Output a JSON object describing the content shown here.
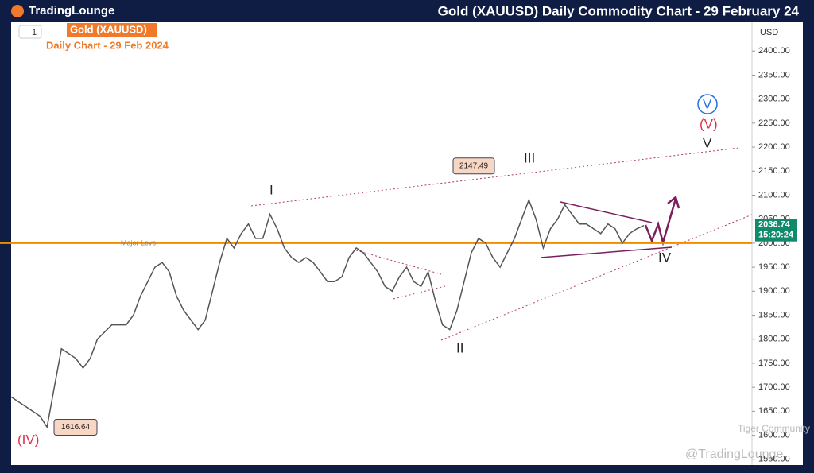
{
  "header": {
    "logo": "TradingLounge",
    "title": "Gold (XAUUSD) Daily Commodity Chart - 29 February 24"
  },
  "toolbar": {
    "interval": "1",
    "currency": "USD"
  },
  "chart_data": {
    "type": "line",
    "title": "Gold (XAUUSD)",
    "subtitle": "Daily Chart - 29 Feb 2024",
    "color": "#555555",
    "values": [
      1680,
      1670,
      1660,
      1650,
      1640,
      1617,
      1700,
      1780,
      1770,
      1760,
      1740,
      1760,
      1800,
      1815,
      1830,
      1830,
      1830,
      1850,
      1890,
      1920,
      1950,
      1960,
      1940,
      1890,
      1860,
      1840,
      1820,
      1840,
      1900,
      1960,
      2010,
      1990,
      2020,
      2040,
      2010,
      2010,
      2060,
      2030,
      1990,
      1970,
      1960,
      1970,
      1960,
      1940,
      1920,
      1920,
      1930,
      1970,
      1990,
      1980,
      1960,
      1940,
      1910,
      1900,
      1930,
      1950,
      1920,
      1910,
      1940,
      1880,
      1830,
      1820,
      1860,
      1920,
      1980,
      2010,
      2000,
      1970,
      1950,
      1980,
      2010,
      2050,
      2090,
      2050,
      1990,
      2030,
      2050,
      2080,
      2060,
      2040,
      2040,
      2030,
      2020,
      2040,
      2030,
      2000,
      2020,
      2030,
      2036.74
    ],
    "ylim": [
      1538,
      2460
    ],
    "yticks": [
      {
        "value": 1550,
        "label": "1550.00"
      },
      {
        "value": 1600,
        "label": "1600.00"
      },
      {
        "value": 1650,
        "label": "1650.00"
      },
      {
        "value": 1700,
        "label": "1700.00"
      },
      {
        "value": 1750,
        "label": "1750.00"
      },
      {
        "value": 1800,
        "label": "1800.00"
      },
      {
        "value": 1850,
        "label": "1850.00"
      },
      {
        "value": 1900,
        "label": "1900.00"
      },
      {
        "value": 1950,
        "label": "1950.00"
      },
      {
        "value": 2000,
        "label": "2000.00"
      },
      {
        "value": 2050,
        "label": "2050.00"
      },
      {
        "value": 2100,
        "label": "2100.00"
      },
      {
        "value": 2150,
        "label": "2150.00"
      },
      {
        "value": 2200,
        "label": "2200.00"
      },
      {
        "value": 2250,
        "label": "2250.00"
      },
      {
        "value": 2300,
        "label": "2300.00"
      },
      {
        "value": 2350,
        "label": "2350.00"
      },
      {
        "value": 2400,
        "label": "2400.00"
      }
    ],
    "major_level": {
      "value": 2000,
      "label": "Major Level"
    },
    "high_label": 2147.49,
    "low_label": 1616.64,
    "last_price": 2036.74,
    "countdown": "15:20:24",
    "waves": {
      "i": "I",
      "ii": "II",
      "iii": "III",
      "iv": "IV",
      "v": "V",
      "v_red": "(V)",
      "v_circle": "V",
      "iv_red": "(IV)"
    }
  },
  "watermark": {
    "community": "Tiger Community",
    "handle": "@TradingLounge"
  }
}
